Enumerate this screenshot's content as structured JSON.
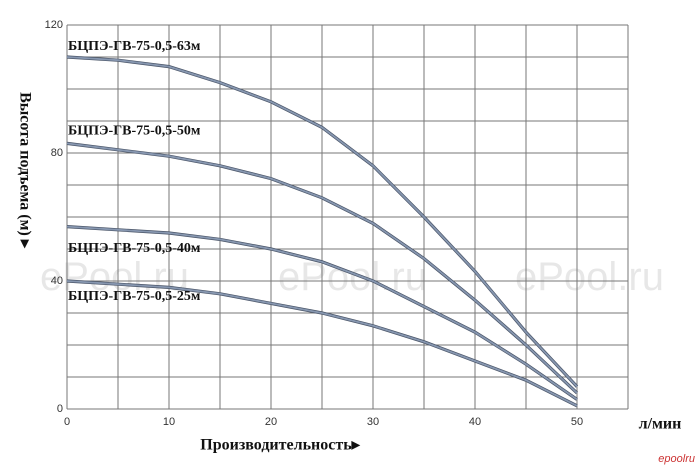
{
  "chart_data": {
    "type": "line",
    "x_label": "Производительность▸",
    "x_unit": "л/мин",
    "y_label": "Высота подъема (м) ▸",
    "watermark": "ePool.ru",
    "logo": "epoolru",
    "x": [
      0,
      5,
      10,
      15,
      20,
      25,
      30,
      35,
      40,
      45,
      50
    ],
    "series": [
      {
        "name": "БЦПЭ-ГВ-75-0,5-63м",
        "color": "#8797b0",
        "values": [
          110,
          109,
          107,
          102,
          96,
          88,
          76,
          60,
          43,
          24,
          7
        ]
      },
      {
        "name": "БЦПЭ-ГВ-75-0,5-50м",
        "color": "#8797b0",
        "values": [
          83,
          81,
          79,
          76,
          72,
          66,
          58,
          47,
          34,
          20,
          5
        ]
      },
      {
        "name": "БЦПЭ-ГВ-75-0,5-40м",
        "color": "#8797b0",
        "values": [
          57,
          56,
          55,
          53,
          50,
          46,
          40,
          32,
          24,
          14,
          3
        ]
      },
      {
        "name": "БЦПЭ-ГВ-75-0,5-25м",
        "color": "#8797b0",
        "values": [
          40,
          39,
          38,
          36,
          33,
          30,
          26,
          21,
          15,
          9,
          1
        ]
      }
    ],
    "xlim": [
      0,
      55
    ],
    "ylim": [
      0,
      120
    ],
    "xticks": [
      0,
      10,
      20,
      30,
      40,
      50
    ],
    "yticks": [
      0,
      40,
      80,
      120
    ],
    "x_gridlines": [
      0,
      5,
      10,
      15,
      20,
      25,
      30,
      35,
      40,
      45,
      50,
      55
    ],
    "y_gridlines": [
      0,
      10,
      20,
      30,
      40,
      50,
      60,
      70,
      80,
      90,
      100,
      110,
      120
    ],
    "grid": true
  }
}
